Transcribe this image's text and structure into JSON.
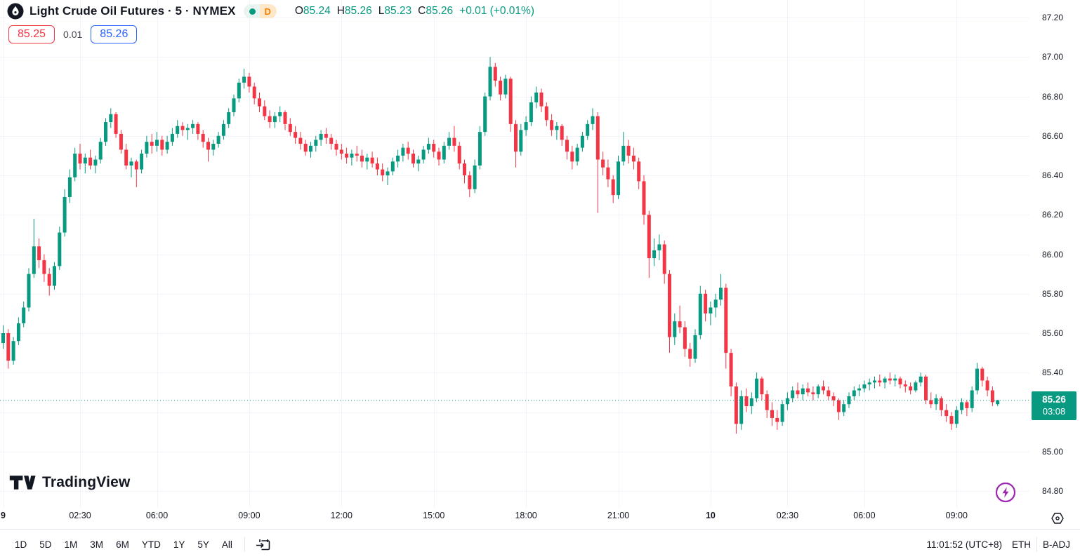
{
  "header": {
    "symbol_title": "Light Crude Oil Futures · 5 · NYMEX",
    "interval_badge": "D",
    "ohlc": {
      "o_label": "O",
      "o_value": "85.24",
      "h_label": "H",
      "h_value": "85.26",
      "l_label": "L",
      "l_value": "85.23",
      "c_label": "C",
      "c_value": "85.26",
      "change": "+0.01 (+0.01%)"
    },
    "sell_price": "85.25",
    "spread": "0.01",
    "buy_price": "85.26"
  },
  "colors": {
    "up": "#089981",
    "down": "#f23645",
    "grid": "#f0f3fa",
    "sell": "#f23645",
    "buy": "#2962ff",
    "badge_bg": "#089981",
    "boost": "#9c27b0"
  },
  "watermark": {
    "text": "TradingView"
  },
  "axis_badge": {
    "price": "85.26",
    "countdown": "03:08"
  },
  "toolbar": {
    "ranges": [
      "1D",
      "5D",
      "1M",
      "3M",
      "6M",
      "YTD",
      "1Y",
      "5Y",
      "All"
    ],
    "clock": "11:01:52 (UTC+8)",
    "session": "ETH",
    "adjustment": "B-ADJ"
  },
  "chart_data": {
    "type": "candlestick",
    "title": "Light Crude Oil Futures, 5 minute, NYMEX",
    "legend": "candles green = up #089981, red = down #f23645",
    "grid": true,
    "last_price": 85.26,
    "countdown": "03:08",
    "price_axis": {
      "min": 84.8,
      "max": 87.2,
      "step": 0.2,
      "labels": [
        "87.20",
        "87.00",
        "86.80",
        "86.60",
        "86.40",
        "86.20",
        "86.00",
        "85.80",
        "85.60",
        "85.40",
        "85.20",
        "85.00",
        "84.80"
      ]
    },
    "time_ticks": [
      {
        "label": "9",
        "i": 0,
        "major": true
      },
      {
        "label": "02:30",
        "i": 15,
        "major": false
      },
      {
        "label": "06:00",
        "i": 30,
        "major": false
      },
      {
        "label": "09:00",
        "i": 48,
        "major": false
      },
      {
        "label": "12:00",
        "i": 66,
        "major": false
      },
      {
        "label": "15:00",
        "i": 84,
        "major": false
      },
      {
        "label": "18:00",
        "i": 102,
        "major": false
      },
      {
        "label": "21:00",
        "i": 120,
        "major": false
      },
      {
        "label": "10",
        "i": 138,
        "major": true
      },
      {
        "label": "02:30",
        "i": 153,
        "major": false
      },
      {
        "label": "06:00",
        "i": 168,
        "major": false
      },
      {
        "label": "09:00",
        "i": 186,
        "major": false
      }
    ],
    "candles": [
      [
        85.55,
        85.64,
        85.52,
        85.6
      ],
      [
        85.6,
        85.62,
        85.42,
        85.46
      ],
      [
        85.46,
        85.58,
        85.44,
        85.56
      ],
      [
        85.56,
        85.68,
        85.54,
        85.65
      ],
      [
        85.65,
        85.76,
        85.63,
        85.73
      ],
      [
        85.73,
        85.93,
        85.71,
        85.9
      ],
      [
        85.9,
        86.18,
        85.88,
        86.04
      ],
      [
        86.04,
        86.08,
        85.93,
        85.97
      ],
      [
        85.97,
        86.0,
        85.86,
        85.9
      ],
      [
        85.9,
        85.93,
        85.79,
        85.84
      ],
      [
        85.84,
        85.96,
        85.82,
        85.94
      ],
      [
        85.94,
        86.14,
        85.92,
        86.11
      ],
      [
        86.11,
        86.33,
        86.09,
        86.29
      ],
      [
        86.29,
        86.43,
        86.26,
        86.39
      ],
      [
        86.39,
        86.54,
        86.37,
        86.51
      ],
      [
        86.51,
        86.56,
        86.43,
        86.46
      ],
      [
        86.46,
        86.51,
        86.41,
        86.49
      ],
      [
        86.49,
        86.53,
        86.43,
        86.45
      ],
      [
        86.45,
        86.5,
        86.41,
        86.48
      ],
      [
        86.48,
        86.59,
        86.46,
        86.57
      ],
      [
        86.57,
        86.69,
        86.55,
        86.67
      ],
      [
        86.67,
        86.74,
        86.64,
        86.71
      ],
      [
        86.71,
        86.72,
        86.59,
        86.61
      ],
      [
        86.61,
        86.63,
        86.51,
        86.53
      ],
      [
        86.53,
        86.56,
        86.43,
        86.45
      ],
      [
        86.45,
        86.49,
        86.39,
        86.47
      ],
      [
        86.47,
        86.48,
        86.34,
        86.43
      ],
      [
        86.43,
        86.53,
        86.41,
        86.51
      ],
      [
        86.51,
        86.6,
        86.49,
        86.57
      ],
      [
        86.57,
        86.61,
        86.51,
        86.55
      ],
      [
        86.55,
        86.62,
        86.52,
        86.58
      ],
      [
        86.58,
        86.6,
        86.5,
        86.53
      ],
      [
        86.53,
        86.6,
        86.51,
        86.57
      ],
      [
        86.57,
        86.64,
        86.55,
        86.61
      ],
      [
        86.61,
        86.68,
        86.59,
        86.65
      ],
      [
        86.65,
        86.67,
        86.6,
        86.63
      ],
      [
        86.63,
        86.66,
        86.58,
        86.64
      ],
      [
        86.64,
        86.68,
        86.61,
        86.66
      ],
      [
        86.66,
        86.67,
        86.58,
        86.61
      ],
      [
        86.61,
        86.63,
        86.54,
        86.57
      ],
      [
        86.57,
        86.59,
        86.47,
        86.53
      ],
      [
        86.53,
        86.58,
        86.5,
        86.56
      ],
      [
        86.56,
        86.62,
        86.54,
        86.6
      ],
      [
        86.6,
        86.68,
        86.58,
        86.66
      ],
      [
        86.66,
        86.74,
        86.64,
        86.72
      ],
      [
        86.72,
        86.81,
        86.7,
        86.79
      ],
      [
        86.79,
        86.89,
        86.77,
        86.87
      ],
      [
        86.87,
        86.94,
        86.84,
        86.9
      ],
      [
        86.9,
        86.92,
        86.82,
        86.85
      ],
      [
        86.85,
        86.87,
        86.76,
        86.79
      ],
      [
        86.79,
        86.82,
        86.72,
        86.75
      ],
      [
        86.75,
        86.78,
        86.68,
        86.7
      ],
      [
        86.7,
        86.73,
        86.64,
        86.67
      ],
      [
        86.67,
        86.72,
        86.64,
        86.7
      ],
      [
        86.7,
        86.75,
        86.67,
        86.72
      ],
      [
        86.72,
        86.73,
        86.63,
        86.66
      ],
      [
        86.66,
        86.69,
        86.6,
        86.62
      ],
      [
        86.62,
        86.65,
        86.56,
        86.59
      ],
      [
        86.59,
        86.62,
        86.53,
        86.56
      ],
      [
        86.56,
        86.58,
        86.5,
        86.52
      ],
      [
        86.52,
        86.57,
        86.49,
        86.55
      ],
      [
        86.55,
        86.6,
        86.52,
        86.58
      ],
      [
        86.58,
        86.63,
        86.55,
        86.61
      ],
      [
        86.61,
        86.64,
        86.56,
        86.59
      ],
      [
        86.59,
        86.61,
        86.53,
        86.56
      ],
      [
        86.56,
        86.58,
        86.5,
        86.53
      ],
      [
        86.53,
        86.56,
        86.48,
        86.51
      ],
      [
        86.51,
        86.54,
        86.46,
        86.49
      ],
      [
        86.49,
        86.53,
        86.45,
        86.51
      ],
      [
        86.51,
        86.55,
        86.47,
        86.5
      ],
      [
        86.5,
        86.53,
        86.44,
        86.47
      ],
      [
        86.47,
        86.51,
        86.43,
        86.49
      ],
      [
        86.49,
        86.52,
        86.44,
        86.46
      ],
      [
        86.46,
        86.49,
        86.4,
        86.43
      ],
      [
        86.43,
        86.46,
        86.37,
        86.4
      ],
      [
        86.4,
        86.44,
        86.35,
        86.42
      ],
      [
        86.42,
        86.49,
        86.4,
        86.47
      ],
      [
        86.47,
        86.53,
        86.44,
        86.5
      ],
      [
        86.5,
        86.56,
        86.47,
        86.54
      ],
      [
        86.54,
        86.57,
        86.48,
        86.51
      ],
      [
        86.51,
        86.53,
        86.44,
        86.46
      ],
      [
        86.46,
        86.5,
        86.42,
        86.48
      ],
      [
        86.48,
        86.55,
        86.46,
        86.53
      ],
      [
        86.53,
        86.59,
        86.51,
        86.56
      ],
      [
        86.56,
        86.58,
        86.49,
        86.52
      ],
      [
        86.52,
        86.54,
        86.45,
        86.48
      ],
      [
        86.48,
        86.57,
        86.46,
        86.55
      ],
      [
        86.55,
        86.62,
        86.53,
        86.59
      ],
      [
        86.59,
        86.65,
        86.52,
        86.55
      ],
      [
        86.55,
        86.57,
        86.43,
        86.46
      ],
      [
        86.46,
        86.48,
        86.36,
        86.4
      ],
      [
        86.4,
        86.42,
        86.29,
        86.33
      ],
      [
        86.33,
        86.48,
        86.31,
        86.45
      ],
      [
        86.45,
        86.65,
        86.43,
        86.62
      ],
      [
        86.62,
        86.82,
        86.6,
        86.8
      ],
      [
        86.8,
        87.0,
        86.78,
        86.95
      ],
      [
        86.95,
        86.97,
        86.85,
        86.88
      ],
      [
        86.88,
        86.9,
        86.78,
        86.81
      ],
      [
        86.81,
        86.91,
        86.79,
        86.89
      ],
      [
        86.89,
        86.9,
        86.62,
        86.66
      ],
      [
        86.66,
        86.68,
        86.44,
        86.52
      ],
      [
        86.52,
        86.66,
        86.5,
        86.63
      ],
      [
        86.63,
        86.7,
        86.6,
        86.67
      ],
      [
        86.67,
        86.8,
        86.65,
        86.77
      ],
      [
        86.77,
        86.85,
        86.74,
        86.82
      ],
      [
        86.82,
        86.84,
        86.72,
        86.75
      ],
      [
        86.75,
        86.77,
        86.65,
        86.68
      ],
      [
        86.68,
        86.71,
        86.6,
        86.63
      ],
      [
        86.63,
        86.67,
        86.58,
        86.65
      ],
      [
        86.65,
        86.66,
        86.55,
        86.58
      ],
      [
        86.58,
        86.6,
        86.48,
        86.52
      ],
      [
        86.52,
        86.55,
        86.43,
        86.47
      ],
      [
        86.47,
        86.56,
        86.45,
        86.54
      ],
      [
        86.54,
        86.62,
        86.52,
        86.6
      ],
      [
        86.6,
        86.68,
        86.58,
        86.66
      ],
      [
        86.66,
        86.74,
        86.63,
        86.7
      ],
      [
        86.7,
        86.72,
        86.21,
        86.48
      ],
      [
        86.48,
        86.52,
        86.4,
        86.44
      ],
      [
        86.44,
        86.48,
        86.34,
        86.38
      ],
      [
        86.38,
        86.4,
        86.26,
        86.3
      ],
      [
        86.3,
        86.5,
        86.28,
        86.47
      ],
      [
        86.47,
        86.62,
        86.45,
        86.55
      ],
      [
        86.55,
        86.58,
        86.46,
        86.5
      ],
      [
        86.5,
        86.54,
        86.43,
        86.47
      ],
      [
        86.47,
        86.49,
        86.33,
        86.37
      ],
      [
        86.37,
        86.4,
        86.15,
        86.2
      ],
      [
        86.2,
        86.22,
        85.88,
        85.98
      ],
      [
        85.98,
        86.08,
        85.94,
        86.02
      ],
      [
        86.02,
        86.1,
        85.97,
        86.05
      ],
      [
        86.05,
        86.07,
        85.85,
        85.9
      ],
      [
        85.9,
        85.92,
        85.5,
        85.58
      ],
      [
        85.58,
        85.7,
        85.54,
        85.66
      ],
      [
        85.66,
        85.74,
        85.6,
        85.63
      ],
      [
        85.63,
        85.66,
        85.48,
        85.52
      ],
      [
        85.52,
        85.55,
        85.43,
        85.47
      ],
      [
        85.47,
        85.62,
        85.45,
        85.59
      ],
      [
        85.59,
        85.84,
        85.57,
        85.8
      ],
      [
        85.8,
        85.82,
        85.66,
        85.7
      ],
      [
        85.7,
        85.76,
        85.64,
        85.73
      ],
      [
        85.73,
        85.8,
        85.68,
        85.77
      ],
      [
        85.77,
        85.9,
        85.74,
        85.83
      ],
      [
        85.83,
        85.85,
        85.42,
        85.5
      ],
      [
        85.5,
        85.52,
        85.28,
        85.33
      ],
      [
        85.33,
        85.35,
        85.09,
        85.14
      ],
      [
        85.14,
        85.31,
        85.11,
        85.28
      ],
      [
        85.28,
        85.32,
        85.2,
        85.23
      ],
      [
        85.23,
        85.3,
        85.19,
        85.27
      ],
      [
        85.27,
        85.4,
        85.25,
        85.37
      ],
      [
        85.37,
        85.38,
        85.26,
        85.29
      ],
      [
        85.29,
        85.31,
        85.17,
        85.21
      ],
      [
        85.21,
        85.25,
        85.13,
        85.17
      ],
      [
        85.17,
        85.21,
        85.11,
        85.15
      ],
      [
        85.15,
        85.26,
        85.13,
        85.24
      ],
      [
        85.24,
        85.3,
        85.21,
        85.27
      ],
      [
        85.27,
        85.33,
        85.25,
        85.31
      ],
      [
        85.31,
        85.35,
        85.27,
        85.29
      ],
      [
        85.29,
        85.34,
        85.26,
        85.32
      ],
      [
        85.32,
        85.35,
        85.28,
        85.3
      ],
      [
        85.3,
        85.33,
        85.26,
        85.29
      ],
      [
        85.29,
        85.34,
        85.27,
        85.33
      ],
      [
        85.33,
        85.36,
        85.29,
        85.31
      ],
      [
        85.31,
        85.33,
        85.26,
        85.28
      ],
      [
        85.28,
        85.3,
        85.23,
        85.26
      ],
      [
        85.26,
        85.27,
        85.16,
        85.2
      ],
      [
        85.2,
        85.26,
        85.18,
        85.24
      ],
      [
        85.24,
        85.3,
        85.22,
        85.28
      ],
      [
        85.28,
        85.33,
        85.26,
        85.31
      ],
      [
        85.31,
        85.34,
        85.28,
        85.32
      ],
      [
        85.32,
        85.36,
        85.3,
        85.34
      ],
      [
        85.34,
        85.37,
        85.31,
        85.35
      ],
      [
        85.35,
        85.38,
        85.32,
        85.36
      ],
      [
        85.36,
        85.39,
        85.33,
        85.35
      ],
      [
        85.35,
        85.38,
        85.32,
        85.37
      ],
      [
        85.37,
        85.4,
        85.34,
        85.36
      ],
      [
        85.36,
        85.39,
        85.33,
        85.37
      ],
      [
        85.37,
        85.38,
        85.32,
        85.34
      ],
      [
        85.34,
        85.36,
        85.3,
        85.33
      ],
      [
        85.33,
        85.35,
        85.29,
        85.31
      ],
      [
        85.31,
        85.36,
        85.3,
        85.35
      ],
      [
        85.35,
        85.4,
        85.33,
        85.38
      ],
      [
        85.38,
        85.39,
        85.24,
        85.26
      ],
      [
        85.26,
        85.3,
        85.22,
        85.24
      ],
      [
        85.24,
        85.29,
        85.21,
        85.27
      ],
      [
        85.27,
        85.28,
        85.18,
        85.21
      ],
      [
        85.21,
        85.24,
        85.15,
        85.18
      ],
      [
        85.18,
        85.2,
        85.11,
        85.14
      ],
      [
        85.14,
        85.23,
        85.12,
        85.21
      ],
      [
        85.21,
        85.27,
        85.19,
        85.25
      ],
      [
        85.25,
        85.26,
        85.18,
        85.22
      ],
      [
        85.22,
        85.33,
        85.2,
        85.31
      ],
      [
        85.31,
        85.45,
        85.29,
        85.42
      ],
      [
        85.42,
        85.43,
        85.33,
        85.36
      ],
      [
        85.36,
        85.38,
        85.28,
        85.31
      ],
      [
        85.31,
        85.33,
        85.23,
        85.25
      ],
      [
        85.24,
        85.26,
        85.23,
        85.26
      ]
    ]
  }
}
